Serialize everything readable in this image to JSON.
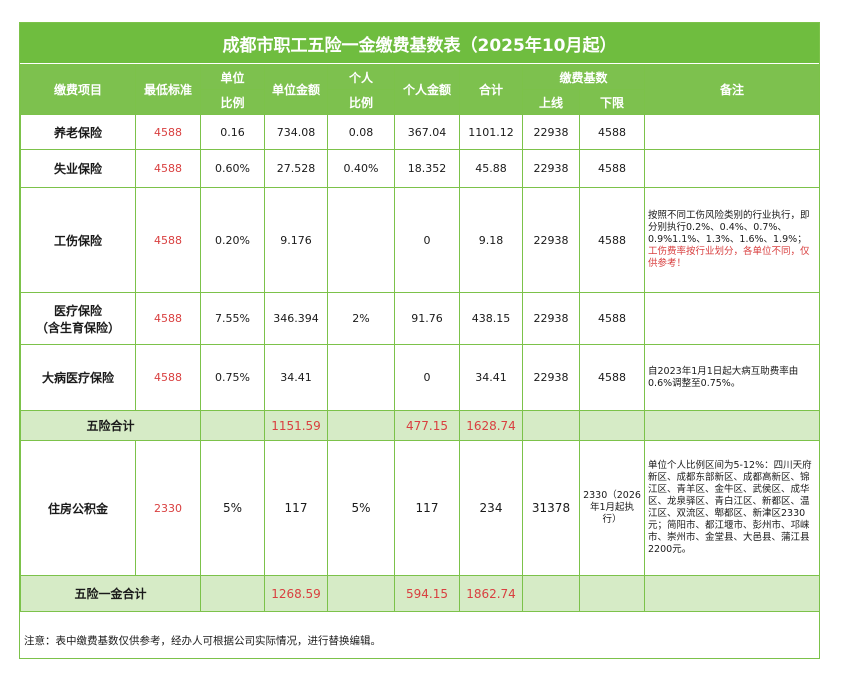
{
  "title": "成都市职工五险一金缴费基数表（2025年10月起）",
  "headers": {
    "item": "缴费项目",
    "min_standard": "最低标准",
    "unit": "单位",
    "unit_ratio": "比例",
    "unit_amount": "单位金额",
    "person": "个人",
    "person_ratio": "比例",
    "person_amount": "个人金额",
    "total": "合计",
    "base": "缴费基数",
    "upper": "上线",
    "lower": "下限",
    "remark": "备注"
  },
  "rows": [
    {
      "item": "养老保险",
      "min": "4588",
      "unit_ratio": "0.16",
      "unit_amount": "734.08",
      "person_ratio": "0.08",
      "person_amount": "367.04",
      "total": "1101.12",
      "upper": "22938",
      "lower": "4588"
    },
    {
      "item": "失业保险",
      "min": "4588",
      "unit_ratio": "0.60%",
      "unit_amount": "27.528",
      "person_ratio": "0.40%",
      "person_amount": "18.352",
      "total": "45.88",
      "upper": "22938",
      "lower": "4588"
    },
    {
      "item": "工伤保险",
      "min": "4588",
      "unit_ratio": "0.20%",
      "unit_amount": "9.176",
      "person_ratio": "",
      "person_amount": "0",
      "total": "9.18",
      "upper": "22938",
      "lower": "4588",
      "note": "按照不同工伤风险类别的行业执行，即分别执行0.2%、0.4%、0.7%、0.9%1.1%、1.3%、1.6%、1.9%；",
      "note_red": "工伤费率按行业划分，各单位不同，仅供参考！"
    },
    {
      "item": "医疗保险",
      "item2": "（含生育保险）",
      "min": "4588",
      "unit_ratio": "7.55%",
      "unit_amount": "346.394",
      "person_ratio": "2%",
      "person_amount": "91.76",
      "total": "438.15",
      "upper": "22938",
      "lower": "4588"
    },
    {
      "item": "大病医疗保险",
      "min": "4588",
      "unit_ratio": "0.75%",
      "unit_amount": "34.41",
      "person_ratio": "",
      "person_amount": "0",
      "total": "34.41",
      "upper": "22938",
      "lower": "4588",
      "note": "自2023年1月1日起大病互助费率由0.6%调整至0.75%。"
    }
  ],
  "sum5": {
    "label": "五险合计",
    "unit_amount": "1151.59",
    "person_amount": "477.15",
    "total": "1628.74"
  },
  "housing": {
    "item": "住房公积金",
    "min": "2330",
    "unit_ratio": "5%",
    "unit_amount": "117",
    "person_ratio": "5%",
    "person_amount": "117",
    "total": "234",
    "upper": "31378",
    "lower": "2330（2026年1月起执行）",
    "note": "单位个人比例区间为5-12%：四川天府新区、成都东部新区、成都高新区、锦江区、青羊区、金牛区、武侯区、成华区、龙泉驿区、青白江区、新都区、温江区、双流区、郫都区、新津区2330元；简阳市、都江堰市、彭州市、邛崃市、崇州市、金堂县、大邑县、蒲江县2200元。"
  },
  "sum6": {
    "label": "五险一金合计",
    "unit_amount": "1268.59",
    "person_amount": "594.15",
    "total": "1862.74"
  },
  "footer": "注意：表中缴费基数仅供参考，经办人可根据公司实际情况，进行替换编辑。"
}
